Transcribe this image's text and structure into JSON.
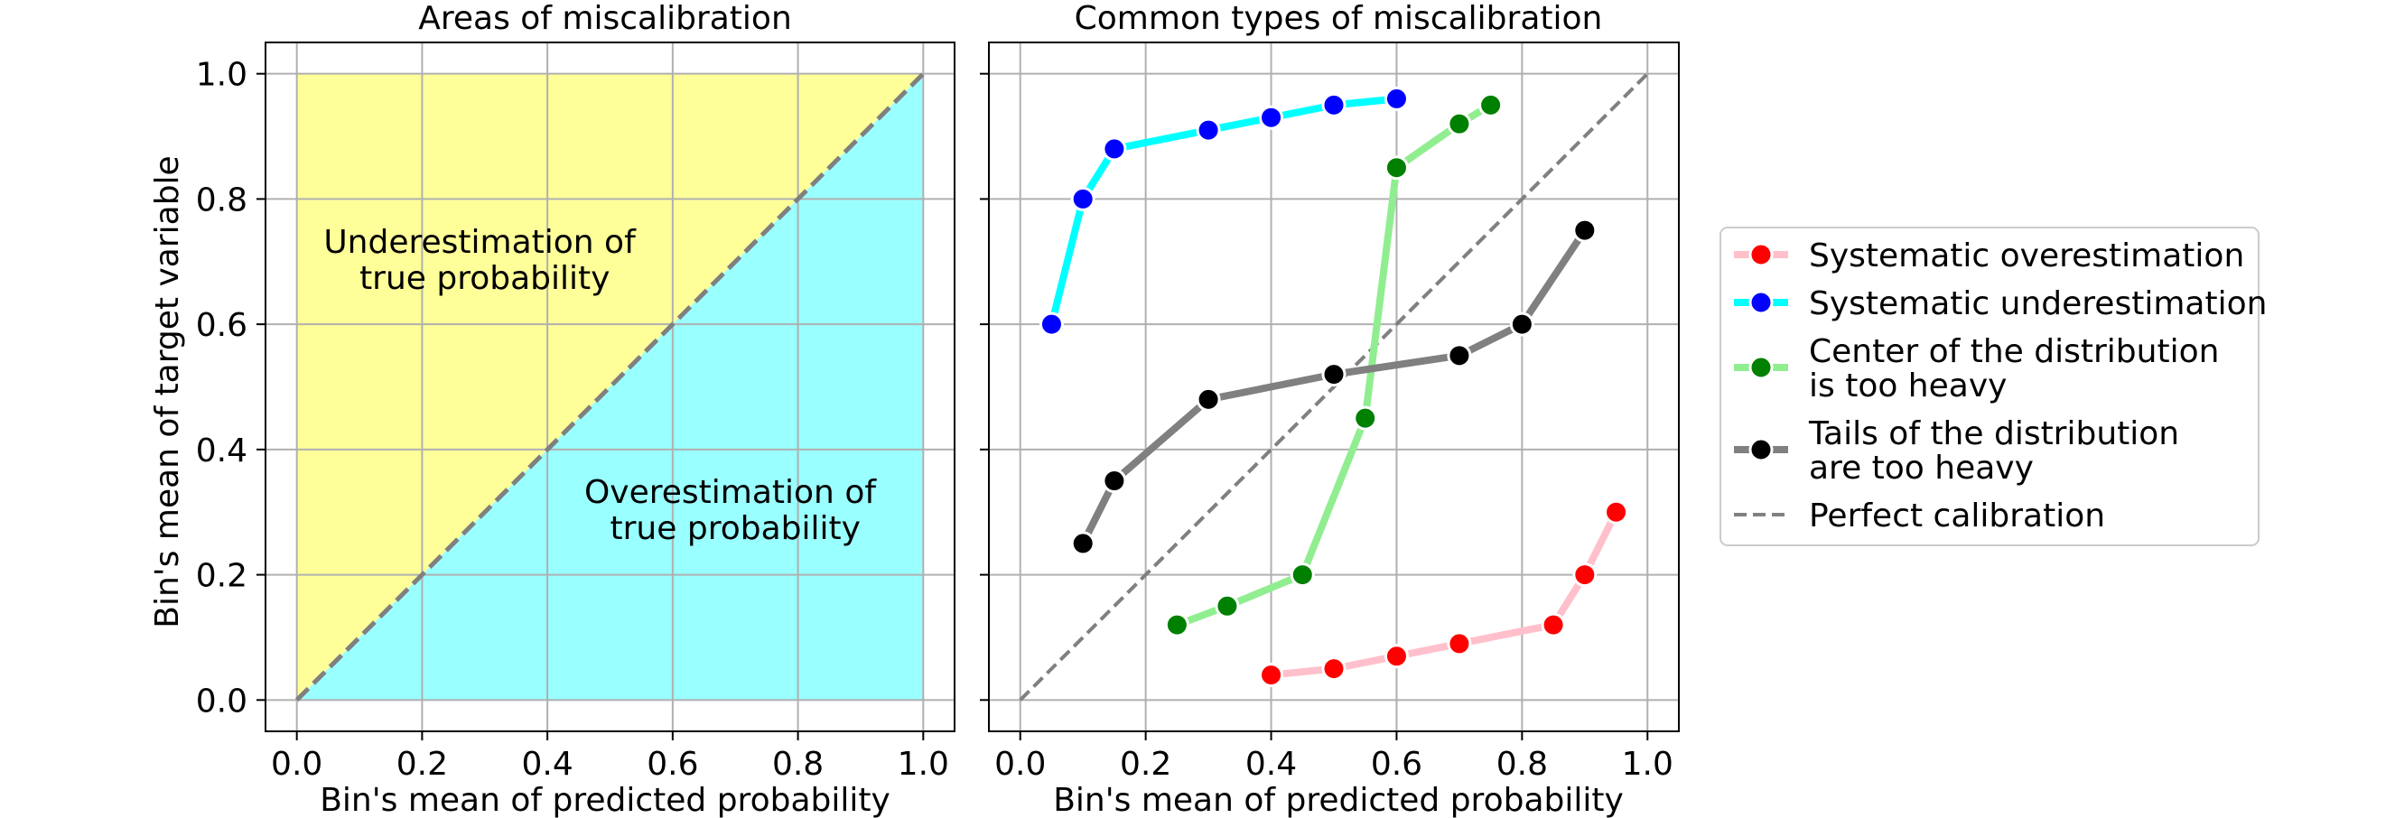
{
  "chart_data": [
    {
      "type": "area",
      "title": "Areas of miscalibration",
      "xlabel": "Bin's mean of predicted probability",
      "ylabel": "Bin's mean of target variable",
      "xlim": [
        -0.05,
        1.05
      ],
      "ylim": [
        -0.05,
        1.05
      ],
      "xticks": [
        0.0,
        0.2,
        0.4,
        0.6,
        0.8,
        1.0
      ],
      "yticks": [
        0.0,
        0.2,
        0.4,
        0.6,
        0.8,
        1.0
      ],
      "xtick_labels": [
        "0.0",
        "0.2",
        "0.4",
        "0.6",
        "0.8",
        "1.0"
      ],
      "ytick_labels": [
        "0.0",
        "0.2",
        "0.4",
        "0.6",
        "0.8",
        "1.0"
      ],
      "grid": true,
      "regions": [
        {
          "name": "underestimation",
          "color": "#ffff99",
          "polygon": [
            [
              0,
              0
            ],
            [
              0,
              1
            ],
            [
              1,
              1
            ]
          ]
        },
        {
          "name": "overestimation",
          "color": "#99ffff",
          "polygon": [
            [
              0,
              0
            ],
            [
              1,
              0
            ],
            [
              1,
              1
            ]
          ]
        }
      ],
      "diagonal": {
        "x": [
          0,
          1
        ],
        "y": [
          0,
          1
        ],
        "style": "dashed",
        "color": "#808080"
      },
      "annotations": [
        {
          "lines": [
            "Underestimation of",
            "true probability"
          ],
          "x": 0.3,
          "y": 0.7
        },
        {
          "lines": [
            "Overestimation of",
            "true probability"
          ],
          "x": 0.7,
          "y": 0.3
        }
      ]
    },
    {
      "type": "line",
      "title": "Common types of miscalibration",
      "xlabel": "Bin's mean of predicted probability",
      "xlim": [
        -0.05,
        1.05
      ],
      "ylim": [
        -0.05,
        1.05
      ],
      "xticks": [
        0.0,
        0.2,
        0.4,
        0.6,
        0.8,
        1.0
      ],
      "yticks": [
        0.0,
        0.2,
        0.4,
        0.6,
        0.8,
        1.0
      ],
      "xtick_labels": [
        "0.0",
        "0.2",
        "0.4",
        "0.6",
        "0.8",
        "1.0"
      ],
      "grid": true,
      "legend_position": "outside-right",
      "series": [
        {
          "name": "Systematic overestimation",
          "legend_lines": [
            "Systematic overestimation"
          ],
          "line_color": "#ffc0cb",
          "marker_color": "#ff0000",
          "x": [
            0.4,
            0.5,
            0.6,
            0.7,
            0.85,
            0.9,
            0.95
          ],
          "y": [
            0.04,
            0.05,
            0.07,
            0.09,
            0.12,
            0.2,
            0.3
          ]
        },
        {
          "name": "Systematic underestimation",
          "legend_lines": [
            "Systematic underestimation"
          ],
          "line_color": "#00ffff",
          "marker_color": "#0000ff",
          "x": [
            0.05,
            0.1,
            0.15,
            0.3,
            0.4,
            0.5,
            0.6
          ],
          "y": [
            0.6,
            0.8,
            0.88,
            0.91,
            0.93,
            0.95,
            0.96
          ]
        },
        {
          "name": "Center of the distribution is too heavy",
          "legend_lines": [
            "Center of the distribution",
            "is too heavy"
          ],
          "line_color": "#90ee90",
          "marker_color": "#008000",
          "x": [
            0.25,
            0.33,
            0.45,
            0.55,
            0.6,
            0.7,
            0.75
          ],
          "y": [
            0.12,
            0.15,
            0.2,
            0.45,
            0.85,
            0.92,
            0.95
          ]
        },
        {
          "name": "Tails of the distribution are too heavy",
          "legend_lines": [
            "Tails of the distribution",
            "are too heavy"
          ],
          "line_color": "#808080",
          "marker_color": "#000000",
          "x": [
            0.1,
            0.15,
            0.3,
            0.5,
            0.7,
            0.8,
            0.9
          ],
          "y": [
            0.25,
            0.35,
            0.48,
            0.52,
            0.55,
            0.6,
            0.75
          ]
        }
      ],
      "reference_line": {
        "name": "Perfect calibration",
        "legend_lines": [
          "Perfect calibration"
        ],
        "x": [
          0,
          1
        ],
        "y": [
          0,
          1
        ],
        "style": "dashed",
        "color": "#808080"
      }
    }
  ]
}
